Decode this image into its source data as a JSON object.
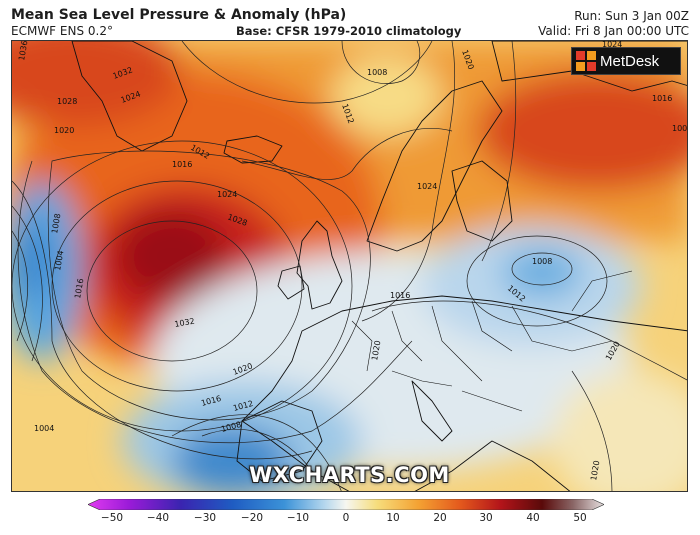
{
  "header": {
    "title": "Mean Sea Level Pressure & Anomaly (hPa)",
    "model": "ECMWF ENS 0.2°",
    "base": "Base: CFSR 1979-2010 climatology",
    "run": "Run: Sun 3 Jan 00Z",
    "valid": "Valid: Fri 8 Jan 00:00 UTC"
  },
  "logo": {
    "text": "MetDesk",
    "icon": "metdesk-grid-icon"
  },
  "watermark": "WXCHARTS.COM",
  "colorbar": {
    "ticks": [
      "−50",
      "−40",
      "−30",
      "−20",
      "−10",
      "0",
      "10",
      "20",
      "30",
      "40",
      "50"
    ],
    "colors": [
      "#c000d8",
      "#7a12d0",
      "#2a1fa8",
      "#1c55c0",
      "#3a8ed6",
      "#a9d0ea",
      "#f3f0e2",
      "#f7d36a",
      "#f39a2a",
      "#e4561c",
      "#b8141a",
      "#5c0a0a",
      "#d8cccc"
    ]
  },
  "isobar_labels": [
    "1036",
    "1032",
    "1028",
    "1024",
    "1020",
    "1016",
    "1012",
    "1008",
    "1004",
    "1008",
    "1012",
    "1016",
    "1020",
    "1024",
    "1028",
    "1032",
    "1024",
    "1020",
    "1016",
    "1012",
    "1008",
    "1004",
    "1008",
    "1012",
    "1016",
    "1020",
    "1020",
    "1020",
    "1024",
    "1024",
    "1016",
    "1008"
  ]
}
